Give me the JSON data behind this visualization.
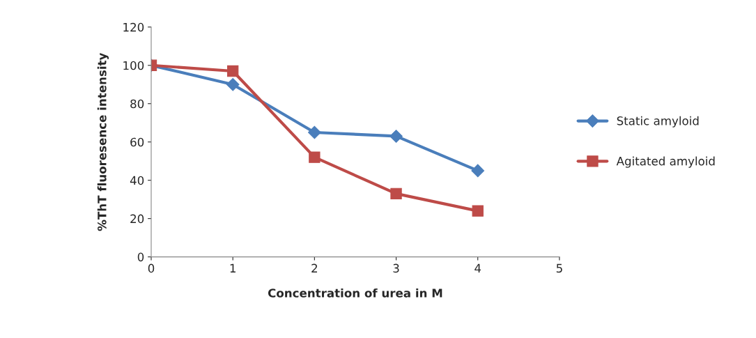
{
  "chart_data": {
    "type": "line",
    "xlabel": "Concentration of urea in M",
    "ylabel": "%ThT fluoresence intensity",
    "x": [
      0,
      1,
      2,
      3,
      4
    ],
    "series": [
      {
        "name": "Static amyloid",
        "color": "#4a7ebb",
        "marker": "diamond",
        "values": [
          100,
          90,
          65,
          63,
          45
        ]
      },
      {
        "name": "Agitated amyloid",
        "color": "#be4b48",
        "marker": "square",
        "values": [
          100,
          97,
          52,
          33,
          24
        ]
      }
    ],
    "xlim": [
      0,
      5
    ],
    "xticks": [
      0,
      1,
      2,
      3,
      4,
      5
    ],
    "ylim": [
      0,
      120
    ],
    "yticks": [
      0,
      20,
      40,
      60,
      80,
      100,
      120
    ],
    "grid": false,
    "legend": "right",
    "line_style": "solid"
  }
}
